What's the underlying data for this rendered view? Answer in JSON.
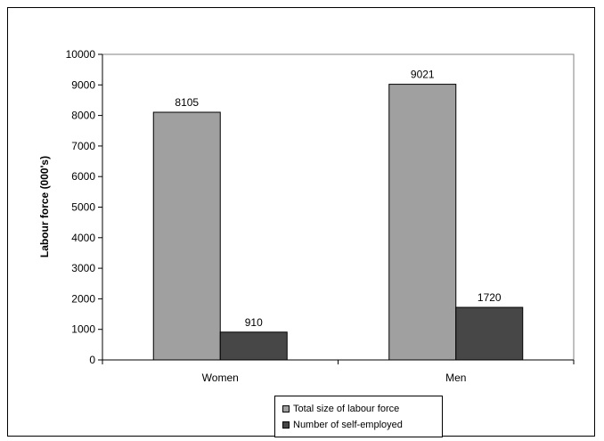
{
  "chart_data": {
    "type": "bar",
    "categories": [
      "Women",
      "Men"
    ],
    "series": [
      {
        "name": "Total size of labour force",
        "values": [
          8105,
          9021
        ],
        "color": "#a0a0a0"
      },
      {
        "name": "Number of self-employed",
        "values": [
          910,
          1720
        ],
        "color": "#474747"
      }
    ],
    "title": "",
    "xlabel": "",
    "ylabel": "Labour force (000's)",
    "ylim": [
      0,
      10000
    ],
    "yticks": [
      0,
      1000,
      2000,
      3000,
      4000,
      5000,
      6000,
      7000,
      8000,
      9000,
      10000
    ],
    "grid": false,
    "legend_position": "bottom"
  },
  "colors": {
    "plot_background": "#ffffff",
    "border": "#808080"
  }
}
